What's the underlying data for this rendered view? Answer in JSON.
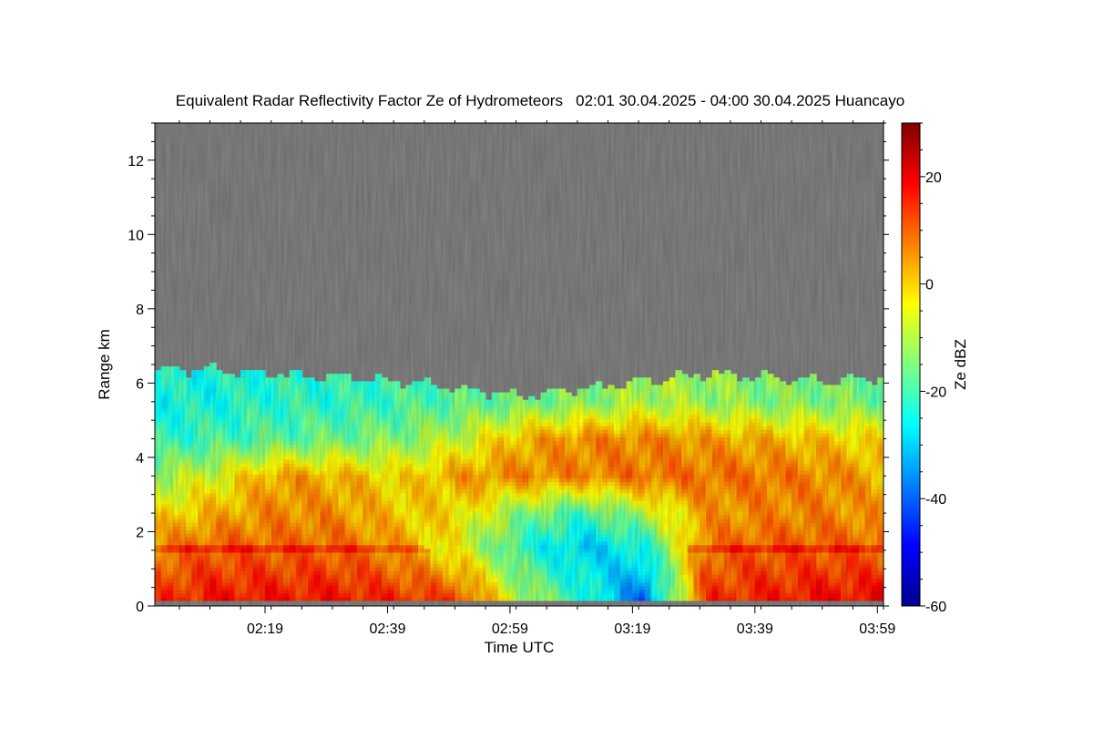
{
  "chart_data": {
    "type": "heatmap",
    "title": "Equivalent Radar Reflectivity Factor Ze of Hydrometeors   02:01 30.04.2025 - 04:00 30.04.2025 Huancayo",
    "xlabel": "Time UTC",
    "ylabel": "Range km",
    "colorbar_label": "Ze dBZ",
    "x_tick_labels": [
      "02:19",
      "02:39",
      "02:59",
      "03:19",
      "03:39",
      "03:59"
    ],
    "y_tick_labels": [
      "0",
      "2",
      "4",
      "6",
      "8",
      "10",
      "12"
    ],
    "colorbar_tick_labels": [
      "-60",
      "-40",
      "-20",
      "0",
      "20"
    ],
    "xlim": [
      "02:01",
      "04:00"
    ],
    "ylim": [
      0,
      13
    ],
    "color_range_dBZ": [
      -60,
      30
    ],
    "colormap": "jet",
    "no_signal_color": "#808080",
    "time_minutes": [
      0,
      10,
      20,
      30,
      40,
      50,
      60,
      70,
      80,
      90,
      100,
      110,
      119
    ],
    "echo_top_km": [
      6.3,
      6.3,
      6.2,
      6.1,
      6.0,
      5.8,
      5.6,
      5.8,
      6.0,
      6.2,
      6.1,
      6.0,
      6.1
    ],
    "range_km": [
      0.15,
      1.6,
      2.5,
      3.5,
      4.5,
      5.5
    ],
    "ze_dBZ": [
      [
        14,
        6,
        -2,
        -12,
        -22,
        -24
      ],
      [
        17,
        10,
        2,
        -6,
        -20,
        -24
      ],
      [
        17,
        9,
        6,
        4,
        -18,
        -22
      ],
      [
        17,
        9,
        5,
        2,
        -16,
        -22
      ],
      [
        15,
        4,
        0,
        -2,
        -14,
        -20
      ],
      [
        12,
        -6,
        -2,
        4,
        -8,
        -18
      ],
      [
        -10,
        -22,
        -14,
        6,
        2,
        -16
      ],
      [
        -22,
        -30,
        -20,
        6,
        6,
        -14
      ],
      [
        -40,
        -24,
        -10,
        8,
        6,
        -10
      ],
      [
        14,
        8,
        4,
        8,
        4,
        -12
      ],
      [
        16,
        10,
        6,
        8,
        2,
        -14
      ],
      [
        18,
        10,
        6,
        6,
        0,
        -14
      ],
      [
        18,
        9,
        4,
        2,
        -2,
        -16
      ]
    ],
    "bright_band_km": [
      1.45,
      1.65
    ],
    "grid": false,
    "legend": "colorbar-right"
  }
}
